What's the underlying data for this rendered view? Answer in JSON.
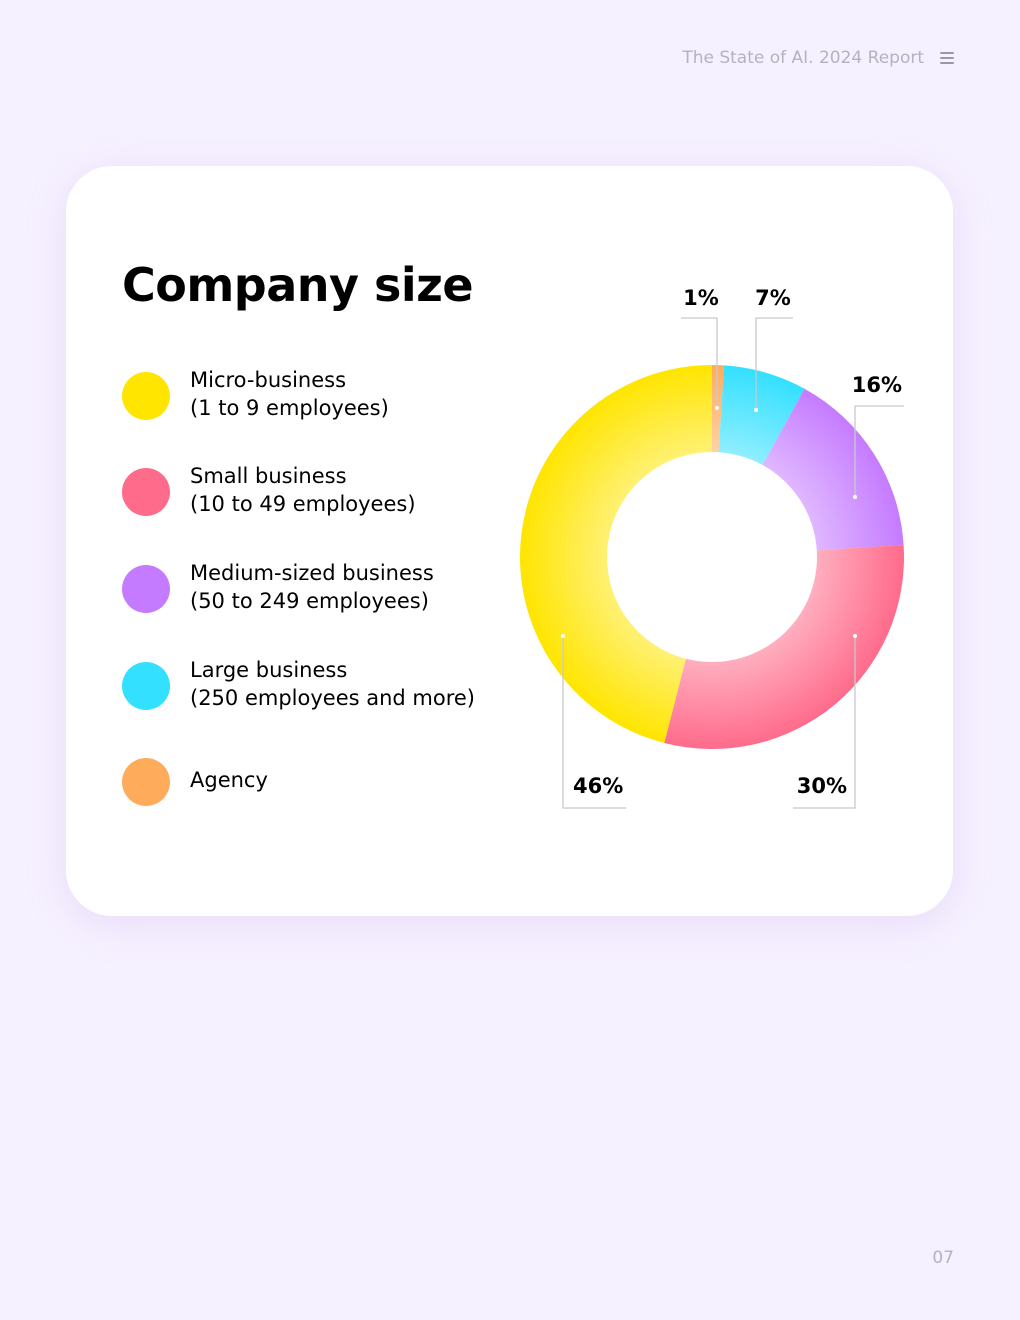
{
  "header": {
    "title": "The State of AI. 2024 Report",
    "menu_icon": "hamburger-menu-icon"
  },
  "card": {
    "title": "Company size"
  },
  "legend": [
    {
      "line1": "Micro-business",
      "line2": "(1 to 9 employees)",
      "color": "#ffe500"
    },
    {
      "line1": "Small business",
      "line2": "(10 to 49 employees)",
      "color": "#ff6b8b"
    },
    {
      "line1": "Medium-sized business",
      "line2": "(50 to 249 employees)",
      "color": "#c57bff"
    },
    {
      "line1": "Large business",
      "line2": "(250 employees and more)",
      "color": "#33e0ff"
    },
    {
      "line1": "Agency",
      "line2": "",
      "color": "#ffab5c"
    }
  ],
  "chart_data": {
    "type": "pie",
    "style": "donut",
    "title": "Company size",
    "categories": [
      "Agency",
      "Large business",
      "Medium-sized business",
      "Small business",
      "Micro-business"
    ],
    "values": [
      1,
      7,
      16,
      30,
      46
    ],
    "labels": [
      "1%",
      "7%",
      "16%",
      "30%",
      "46%"
    ],
    "colors": [
      "#ffab5c",
      "#33e0ff",
      "#c57bff",
      "#ff6b8b",
      "#ffe500"
    ],
    "legend": "left"
  },
  "page": {
    "number": "07"
  }
}
